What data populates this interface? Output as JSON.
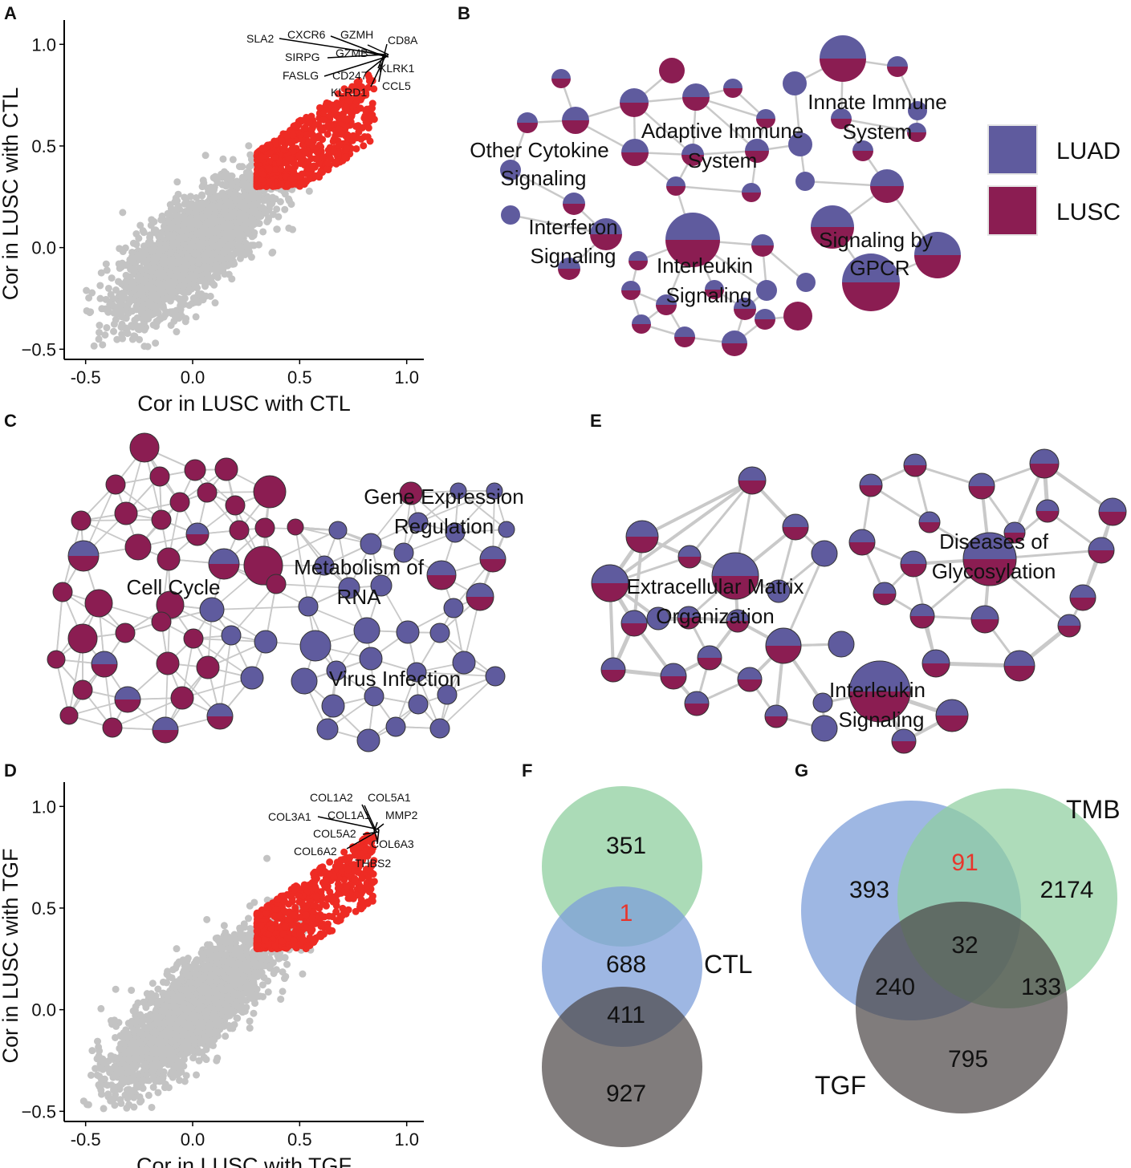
{
  "colors": {
    "luad": "#5f5b9e",
    "lusc": "#8b1d52",
    "highlight": "#ee2b24",
    "background_points": "#c3c3c3",
    "edge": "#c9c9c9",
    "venn_green": "#8fcf9f",
    "venn_blue": "#7d9fd9",
    "venn_grey": "#4a4444",
    "venn_intersect_text": "#e8352b"
  },
  "panels": {
    "A": {
      "letter": "A"
    },
    "B": {
      "letter": "B",
      "labels": [
        "Innate Immune",
        "System",
        "Adaptive Immune",
        "System",
        "Other Cytokine",
        "Signaling",
        "Interferon",
        "Signaling",
        "Interleukin",
        "Signaling",
        "Signaling by",
        "GPCR"
      ]
    },
    "C": {
      "letter": "C",
      "labels": [
        "Gene Expression",
        "Regulation",
        "Metabolism of",
        "RNA",
        "Cell Cycle",
        "Virus Infection"
      ]
    },
    "D": {
      "letter": "D"
    },
    "E": {
      "letter": "E",
      "labels": [
        "Extracellular Matrix",
        "Organization",
        "Diseases of",
        "Glycosylation",
        "Interleukin",
        "Signaling"
      ]
    },
    "F": {
      "letter": "F",
      "values": [
        "351",
        "1",
        "688",
        "411",
        "927"
      ],
      "set_label": "CTL"
    },
    "G": {
      "letter": "G",
      "values": [
        "393",
        "91",
        "2174",
        "32",
        "240",
        "133",
        "795"
      ],
      "set_labels": [
        "TMB",
        "TGF"
      ]
    }
  },
  "legend": {
    "items": [
      {
        "label": "LUAD"
      },
      {
        "label": "LUSC"
      }
    ]
  },
  "chart_data": [
    {
      "panel": "A",
      "type": "scatter",
      "xlabel": "Cor in LUSC with CTL",
      "ylabel": "Cor in LUSC with CTL",
      "xlim": [
        -0.6,
        1.08
      ],
      "ylim": [
        -0.55,
        1.08
      ],
      "xticks": [
        -0.5,
        0.0,
        0.5,
        1.0
      ],
      "xtick_labels": [
        "-0.5",
        "0.0",
        "0.5",
        "1.0"
      ],
      "yticks": [
        -0.5,
        0.0,
        0.5,
        1.0
      ],
      "ytick_labels": [
        "−0.5",
        "0.0",
        "0.5",
        "1.0"
      ],
      "cloud": {
        "center": [
          0.0,
          0.0
        ],
        "spread": 0.5,
        "correlation": 0.72
      },
      "highlight_threshold_x": 0.3,
      "annotated_genes": [
        "SLA2",
        "CXCR6",
        "GZMH",
        "CD8A",
        "SIRPG",
        "GZMB",
        "KLRK1",
        "FASLG",
        "CD247",
        "CCL5",
        "KLRD1"
      ]
    },
    {
      "panel": "D",
      "type": "scatter",
      "xlabel": "Cor in LUSC with TGF",
      "ylabel": "Cor in LUSC with TGF",
      "xlim": [
        -0.6,
        1.08
      ],
      "ylim": [
        -0.55,
        1.08
      ],
      "xticks": [
        -0.5,
        0.0,
        0.5,
        1.0
      ],
      "xtick_labels": [
        "-0.5",
        "0.0",
        "0.5",
        "1.0"
      ],
      "yticks": [
        -0.5,
        0.0,
        0.5,
        1.0
      ],
      "ytick_labels": [
        "−0.5",
        "0.0",
        "0.5",
        "1.0"
      ],
      "cloud": {
        "center": [
          0.0,
          0.0
        ],
        "spread": 0.55,
        "correlation": 0.8
      },
      "highlight_threshold_x": 0.3,
      "annotated_genes": [
        "COL1A2",
        "COL5A1",
        "COL3A1",
        "COL1A1",
        "MMP2",
        "COL5A2",
        "COL6A3",
        "COL6A2",
        "THBS2"
      ]
    }
  ]
}
